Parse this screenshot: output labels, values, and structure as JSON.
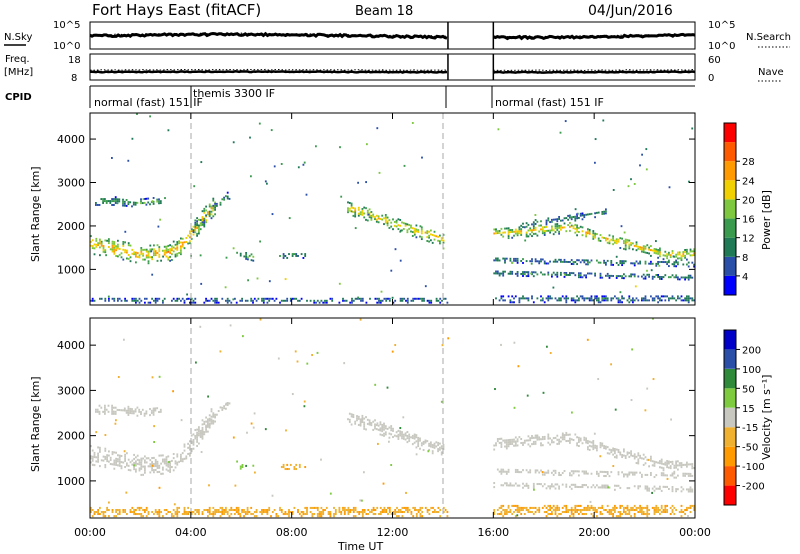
{
  "header": {
    "title": "Fort Hays East (fitACF)",
    "beam": "Beam 18",
    "date": "04/Jun/2016"
  },
  "panels": {
    "nsky": {
      "label": "N.Sky",
      "ticks": [
        "10^5",
        "10^0"
      ],
      "right_label": "N.Search",
      "right_ticks": [
        "10^5",
        "10^0"
      ]
    },
    "freq": {
      "label": "Freq.",
      "unit": "[MHz]",
      "ticks": [
        "18",
        "8"
      ],
      "right_label": "Nave",
      "right_ticks": [
        "60",
        "0"
      ]
    },
    "cpid": {
      "label": "CPID",
      "modes": [
        {
          "text": "normal (fast) 151 IF",
          "start": 0.0,
          "end": 4.0
        },
        {
          "text": "themis 3300 IF",
          "start": 4.0,
          "end": 14.2
        },
        {
          "text": "normal (fast) 151 IF",
          "start": 16.0,
          "end": 24.0
        }
      ]
    }
  },
  "colors": {
    "power_scale": [
      "#0000ff",
      "#2a4fa8",
      "#1f7a55",
      "#3a9a4e",
      "#7ec840",
      "#f0d000",
      "#ff9a00",
      "#ff5a00",
      "#ff0000"
    ],
    "velocity_scale": [
      "#ff0000",
      "#ff5a00",
      "#ff9a00",
      "#f0b030",
      "#c8c8c0",
      "#7ecb40",
      "#2f8a3a",
      "#2a4fa8",
      "#0000c8"
    ]
  },
  "chart_data": [
    {
      "type": "heatmap",
      "title": "Power",
      "colorbar_label": "Power [dB]",
      "colorbar_ticks": [
        "4",
        "8",
        "12",
        "16",
        "20",
        "24",
        "28"
      ],
      "colorbar_range": [
        0,
        32
      ],
      "xlabel": "",
      "ylabel": "Slant Range [km]",
      "xlim": [
        0,
        24
      ],
      "ylim": [
        180,
        4600
      ],
      "yticks": [
        "1000",
        "2000",
        "3000",
        "4000"
      ],
      "data_gap": [
        14.2,
        16.0
      ],
      "echo_bands": [
        {
          "t": [
            0.0,
            1.0,
            2.0,
            3.0,
            3.6,
            4.0,
            4.6,
            5.0
          ],
          "range": [
            1550,
            1450,
            1320,
            1350,
            1500,
            1800,
            2250,
            2500
          ],
          "width": 420,
          "power": 22
        },
        {
          "t": [
            0.2,
            1.0,
            2.0,
            2.8
          ],
          "range": [
            2550,
            2550,
            2500,
            2550
          ],
          "width": 180,
          "power": 12
        },
        {
          "t": [
            4.0,
            4.6,
            5.0,
            5.5
          ],
          "range": [
            1900,
            2200,
            2450,
            2700
          ],
          "width": 200,
          "power": 12
        },
        {
          "t": [
            5.8,
            6.5
          ],
          "range": [
            1350,
            1250
          ],
          "width": 160,
          "power": 14
        },
        {
          "t": [
            7.5,
            8.5
          ],
          "range": [
            1300,
            1300
          ],
          "width": 120,
          "power": 12
        },
        {
          "t": [
            10.2,
            11.0,
            12.0,
            13.0,
            14.0
          ],
          "range": [
            2400,
            2250,
            2050,
            1850,
            1650
          ],
          "width": 300,
          "power": 20
        },
        {
          "t": [
            16.0,
            17.0,
            18.0,
            19.0,
            20.0,
            21.0,
            22.0,
            23.0,
            24.0
          ],
          "range": [
            1800,
            1850,
            1900,
            1950,
            1750,
            1600,
            1450,
            1300,
            1350
          ],
          "width": 260,
          "power": 20
        },
        {
          "t": [
            16.0,
            20.0,
            24.0
          ],
          "range": [
            1200,
            1150,
            1100
          ],
          "width": 120,
          "power": 10
        },
        {
          "t": [
            16.0,
            20.0,
            24.0
          ],
          "range": [
            900,
            850,
            800
          ],
          "width": 120,
          "power": 10
        },
        {
          "t": [
            17.0,
            19.0,
            20.5
          ],
          "range": [
            2000,
            2150,
            2300
          ],
          "width": 140,
          "power": 10
        },
        {
          "t": [
            0.0,
            14.2
          ],
          "range": [
            270,
            270
          ],
          "width": 120,
          "power": 8
        },
        {
          "t": [
            16.0,
            24.0
          ],
          "range": [
            300,
            300
          ],
          "width": 160,
          "power": 8
        }
      ]
    },
    {
      "type": "heatmap",
      "title": "Velocity",
      "colorbar_label": "Velocity [m s⁻¹]",
      "colorbar_ticks": [
        "-200",
        "-100",
        "-50",
        "-15",
        "15",
        "50",
        "100",
        "200"
      ],
      "colorbar_range": [
        -250,
        250
      ],
      "xlabel": "Time UT",
      "ylabel": "Slant Range [km]",
      "xlim": [
        0,
        24
      ],
      "xticks": [
        "00:00",
        "04:00",
        "08:00",
        "12:00",
        "16:00",
        "20:00",
        "00:00"
      ],
      "ylim": [
        180,
        4600
      ],
      "yticks": [
        "1000",
        "2000",
        "3000",
        "4000"
      ],
      "data_gap": [
        14.2,
        16.0
      ],
      "echo_bands": [
        {
          "t": [
            0.0,
            1.0,
            2.0,
            3.0,
            3.6,
            4.0,
            4.6,
            5.0
          ],
          "range": [
            1550,
            1450,
            1320,
            1350,
            1500,
            1800,
            2250,
            2500
          ],
          "width": 420,
          "velocity": 0
        },
        {
          "t": [
            0.2,
            1.0,
            2.0,
            2.8
          ],
          "range": [
            2550,
            2550,
            2500,
            2550
          ],
          "width": 180,
          "velocity": 0
        },
        {
          "t": [
            4.0,
            4.6,
            5.0,
            5.5
          ],
          "range": [
            1900,
            2200,
            2450,
            2700
          ],
          "width": 200,
          "velocity": 0
        },
        {
          "t": [
            5.8,
            6.5
          ],
          "range": [
            1350,
            1250
          ],
          "width": 160,
          "velocity": 40
        },
        {
          "t": [
            7.5,
            8.5
          ],
          "range": [
            1300,
            1300
          ],
          "width": 120,
          "velocity": -40
        },
        {
          "t": [
            10.2,
            11.0,
            12.0,
            13.0,
            14.0
          ],
          "range": [
            2400,
            2250,
            2050,
            1850,
            1650
          ],
          "width": 300,
          "velocity": 0
        },
        {
          "t": [
            16.0,
            17.0,
            18.0,
            19.0,
            20.0,
            21.0,
            22.0,
            23.0,
            24.0
          ],
          "range": [
            1800,
            1850,
            1900,
            1950,
            1750,
            1600,
            1450,
            1300,
            1350
          ],
          "width": 260,
          "velocity": 0
        },
        {
          "t": [
            16.0,
            20.0,
            24.0
          ],
          "range": [
            1200,
            1150,
            1100
          ],
          "width": 120,
          "velocity": 0
        },
        {
          "t": [
            16.0,
            20.0,
            24.0
          ],
          "range": [
            900,
            850,
            800
          ],
          "width": 120,
          "velocity": 0
        },
        {
          "t": [
            0.0,
            14.2
          ],
          "range": [
            300,
            300
          ],
          "width": 200,
          "velocity": -40
        },
        {
          "t": [
            16.0,
            24.0
          ],
          "range": [
            330,
            330
          ],
          "width": 260,
          "velocity": -40
        }
      ]
    }
  ]
}
